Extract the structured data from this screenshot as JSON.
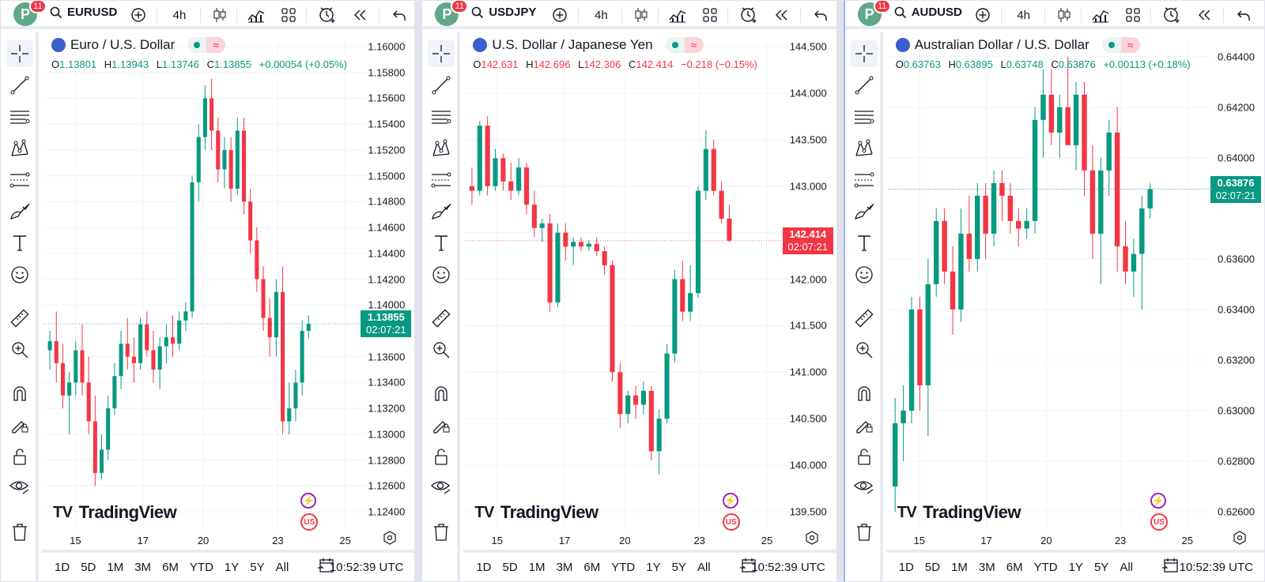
{
  "user": {
    "avatar_letter": "P",
    "notifications": "11"
  },
  "toolbar": {
    "interval": "4h"
  },
  "bottom": {
    "ranges": [
      "1D",
      "5D",
      "1M",
      "3M",
      "6M",
      "YTD",
      "1Y",
      "5Y",
      "All"
    ],
    "time": "10:52:39 UTC"
  },
  "colors": {
    "up": "#089981",
    "down": "#f23645",
    "accent": "#2962ff"
  },
  "watermark": "TradingView",
  "panes": [
    {
      "symbol": "EURUSD",
      "title": "Euro / U.S. Dollar",
      "ohlc": {
        "o_label": "O",
        "o": "1.13801",
        "h_label": "H",
        "h": "1.13943",
        "l_label": "L",
        "l": "1.13746",
        "c_label": "C",
        "c": "1.13855",
        "change": "+0.00054 (+0.05%)",
        "direction": "up"
      },
      "last_price": "1.13855",
      "countdown": "02:07:21",
      "y_ticks": [
        "1.16000",
        "1.15800",
        "1.15600",
        "1.15400",
        "1.15200",
        "1.15000",
        "1.14800",
        "1.14600",
        "1.14400",
        "1.14200",
        "1.14000",
        "1.13600",
        "1.13400",
        "1.13200",
        "1.13000",
        "1.12800",
        "1.12600",
        "1.12400"
      ],
      "x_ticks": [
        "15",
        "17",
        "20",
        "23",
        "25"
      ],
      "chart_data": {
        "type": "candlestick",
        "ylim": [
          1.124,
          1.16
        ],
        "last": 1.13855,
        "candles": [
          [
            1.1365,
            1.138,
            1.135,
            1.1372
          ],
          [
            1.1372,
            1.1395,
            1.134,
            1.1355
          ],
          [
            1.1355,
            1.137,
            1.132,
            1.133
          ],
          [
            1.133,
            1.1348,
            1.13,
            1.134
          ],
          [
            1.134,
            1.1372,
            1.133,
            1.1365
          ],
          [
            1.1365,
            1.1385,
            1.133,
            1.134
          ],
          [
            1.134,
            1.136,
            1.13,
            1.131
          ],
          [
            1.131,
            1.133,
            1.126,
            1.127
          ],
          [
            1.127,
            1.13,
            1.1265,
            1.1288
          ],
          [
            1.1288,
            1.133,
            1.128,
            1.132
          ],
          [
            1.132,
            1.1355,
            1.1315,
            1.1345
          ],
          [
            1.1345,
            1.138,
            1.1335,
            1.137
          ],
          [
            1.137,
            1.139,
            1.135,
            1.136
          ],
          [
            1.136,
            1.1375,
            1.134,
            1.1355
          ],
          [
            1.1355,
            1.139,
            1.135,
            1.1385
          ],
          [
            1.1385,
            1.1395,
            1.136,
            1.1365
          ],
          [
            1.1365,
            1.138,
            1.134,
            1.135
          ],
          [
            1.135,
            1.1375,
            1.1335,
            1.1368
          ],
          [
            1.1368,
            1.1385,
            1.1355,
            1.1375
          ],
          [
            1.1375,
            1.1392,
            1.136,
            1.137
          ],
          [
            1.137,
            1.1395,
            1.1365,
            1.1388
          ],
          [
            1.1388,
            1.1402,
            1.138,
            1.1395
          ],
          [
            1.1395,
            1.15,
            1.139,
            1.1495
          ],
          [
            1.1495,
            1.154,
            1.148,
            1.153
          ],
          [
            1.153,
            1.157,
            1.152,
            1.156
          ],
          [
            1.156,
            1.1575,
            1.152,
            1.1535
          ],
          [
            1.1535,
            1.1545,
            1.1495,
            1.1505
          ],
          [
            1.1505,
            1.153,
            1.149,
            1.152
          ],
          [
            1.152,
            1.153,
            1.148,
            1.149
          ],
          [
            1.149,
            1.1545,
            1.1485,
            1.1535
          ],
          [
            1.1535,
            1.1545,
            1.147,
            1.148
          ],
          [
            1.148,
            1.149,
            1.144,
            1.145
          ],
          [
            1.145,
            1.146,
            1.141,
            1.142
          ],
          [
            1.142,
            1.143,
            1.138,
            1.139
          ],
          [
            1.139,
            1.1405,
            1.136,
            1.1375
          ],
          [
            1.1375,
            1.142,
            1.136,
            1.141
          ],
          [
            1.141,
            1.143,
            1.13,
            1.131
          ],
          [
            1.131,
            1.134,
            1.13,
            1.132
          ],
          [
            1.132,
            1.135,
            1.131,
            1.134
          ],
          [
            1.134,
            1.1388,
            1.133,
            1.138
          ],
          [
            1.138,
            1.1392,
            1.1374,
            1.13855
          ]
        ]
      }
    },
    {
      "symbol": "USDJPY",
      "title": "U.S. Dollar / Japanese Yen",
      "ohlc": {
        "o_label": "O",
        "o": "142.631",
        "h_label": "H",
        "h": "142.696",
        "l_label": "L",
        "l": "142.306",
        "c_label": "C",
        "c": "142.414",
        "change": "−0.218 (−0.15%)",
        "direction": "down"
      },
      "last_price": "142.414",
      "countdown": "02:07:21",
      "y_ticks": [
        "144.500",
        "144.000",
        "143.500",
        "143.000",
        "142.500",
        "142.000",
        "141.500",
        "141.000",
        "140.500",
        "140.000",
        "139.500"
      ],
      "x_ticks": [
        "15",
        "17",
        "20",
        "23",
        "25"
      ],
      "chart_data": {
        "type": "candlestick",
        "ylim": [
          139.5,
          144.5
        ],
        "last": 142.414,
        "candles": [
          [
            143.0,
            143.2,
            142.8,
            142.95
          ],
          [
            142.95,
            143.7,
            142.9,
            143.65
          ],
          [
            143.65,
            143.75,
            142.9,
            143.0
          ],
          [
            143.0,
            143.4,
            142.95,
            143.3
          ],
          [
            143.3,
            143.35,
            142.95,
            143.05
          ],
          [
            143.05,
            143.25,
            142.85,
            142.95
          ],
          [
            142.95,
            143.3,
            142.9,
            143.2
          ],
          [
            143.2,
            143.25,
            142.7,
            142.8
          ],
          [
            142.8,
            142.95,
            142.45,
            142.55
          ],
          [
            142.55,
            142.65,
            142.4,
            142.6
          ],
          [
            142.6,
            142.7,
            141.65,
            141.75
          ],
          [
            141.75,
            142.6,
            141.7,
            142.5
          ],
          [
            142.5,
            142.6,
            142.2,
            142.35
          ],
          [
            142.35,
            142.45,
            142.15,
            142.4
          ],
          [
            142.4,
            142.45,
            142.3,
            142.35
          ],
          [
            142.35,
            142.42,
            142.3,
            142.38
          ],
          [
            142.38,
            142.45,
            142.25,
            142.3
          ],
          [
            142.3,
            142.35,
            142.05,
            142.15
          ],
          [
            142.15,
            142.2,
            140.9,
            141.0
          ],
          [
            141.0,
            141.1,
            140.4,
            140.55
          ],
          [
            140.55,
            140.8,
            140.45,
            140.75
          ],
          [
            140.75,
            140.85,
            140.5,
            140.65
          ],
          [
            140.65,
            140.9,
            140.55,
            140.8
          ],
          [
            140.8,
            140.85,
            140.05,
            140.15
          ],
          [
            140.15,
            140.6,
            139.9,
            140.5
          ],
          [
            140.5,
            141.3,
            140.45,
            141.2
          ],
          [
            141.2,
            142.1,
            141.1,
            142.0
          ],
          [
            142.0,
            142.2,
            141.55,
            141.65
          ],
          [
            141.65,
            142.15,
            141.55,
            141.85
          ],
          [
            141.85,
            143.0,
            141.8,
            142.95
          ],
          [
            142.95,
            143.6,
            142.85,
            143.4
          ],
          [
            143.4,
            143.5,
            142.9,
            142.95
          ],
          [
            142.95,
            143.05,
            142.6,
            142.65
          ],
          [
            142.65,
            142.8,
            142.4,
            142.414
          ]
        ]
      }
    },
    {
      "symbol": "AUDUSD",
      "title": "Australian Dollar / U.S. Dollar",
      "ohlc": {
        "o_label": "O",
        "o": "0.63763",
        "h_label": "H",
        "h": "0.63895",
        "l_label": "L",
        "l": "0.63748",
        "c_label": "C",
        "c": "0.63876",
        "change": "+0.00113 (+0.18%)",
        "direction": "up"
      },
      "last_price": "0.63876",
      "countdown": "02:07:21",
      "y_ticks": [
        "0.64400",
        "0.64200",
        "0.64000",
        "0.63876",
        "0.63600",
        "0.63400",
        "0.63200",
        "0.63000",
        "0.62800",
        "0.62600"
      ],
      "x_ticks": [
        "15",
        "17",
        "20",
        "23",
        "25"
      ],
      "chart_data": {
        "type": "candlestick",
        "ylim": [
          0.626,
          0.6444
        ],
        "last": 0.63876,
        "candles": [
          [
            0.627,
            0.6305,
            0.626,
            0.6295
          ],
          [
            0.6295,
            0.631,
            0.628,
            0.63
          ],
          [
            0.63,
            0.6345,
            0.6295,
            0.634
          ],
          [
            0.634,
            0.6345,
            0.63,
            0.631
          ],
          [
            0.631,
            0.636,
            0.629,
            0.635
          ],
          [
            0.635,
            0.638,
            0.6345,
            0.6375
          ],
          [
            0.6375,
            0.638,
            0.635,
            0.6355
          ],
          [
            0.6355,
            0.6365,
            0.633,
            0.634
          ],
          [
            0.634,
            0.638,
            0.6335,
            0.637
          ],
          [
            0.637,
            0.6385,
            0.6355,
            0.636
          ],
          [
            0.636,
            0.639,
            0.6355,
            0.6385
          ],
          [
            0.6385,
            0.639,
            0.636,
            0.637
          ],
          [
            0.637,
            0.6395,
            0.6365,
            0.639
          ],
          [
            0.639,
            0.6395,
            0.6375,
            0.6385
          ],
          [
            0.6385,
            0.639,
            0.637,
            0.6375
          ],
          [
            0.6375,
            0.638,
            0.6365,
            0.6372
          ],
          [
            0.6372,
            0.638,
            0.6368,
            0.6375
          ],
          [
            0.6375,
            0.642,
            0.637,
            0.6415
          ],
          [
            0.6415,
            0.6435,
            0.64,
            0.6425
          ],
          [
            0.6425,
            0.6435,
            0.6405,
            0.641
          ],
          [
            0.641,
            0.6425,
            0.64,
            0.642
          ],
          [
            0.642,
            0.644,
            0.6405,
            0.6405
          ],
          [
            0.6405,
            0.643,
            0.6395,
            0.6425
          ],
          [
            0.6425,
            0.643,
            0.6385,
            0.6395
          ],
          [
            0.6395,
            0.6405,
            0.636,
            0.637
          ],
          [
            0.637,
            0.64,
            0.635,
            0.6395
          ],
          [
            0.6395,
            0.6415,
            0.6385,
            0.641
          ],
          [
            0.641,
            0.642,
            0.6355,
            0.6365
          ],
          [
            0.6365,
            0.6375,
            0.635,
            0.6355
          ],
          [
            0.6355,
            0.6368,
            0.6345,
            0.6362
          ],
          [
            0.6362,
            0.6385,
            0.634,
            0.638
          ],
          [
            0.638,
            0.639,
            0.6376,
            0.63876
          ]
        ]
      }
    }
  ]
}
